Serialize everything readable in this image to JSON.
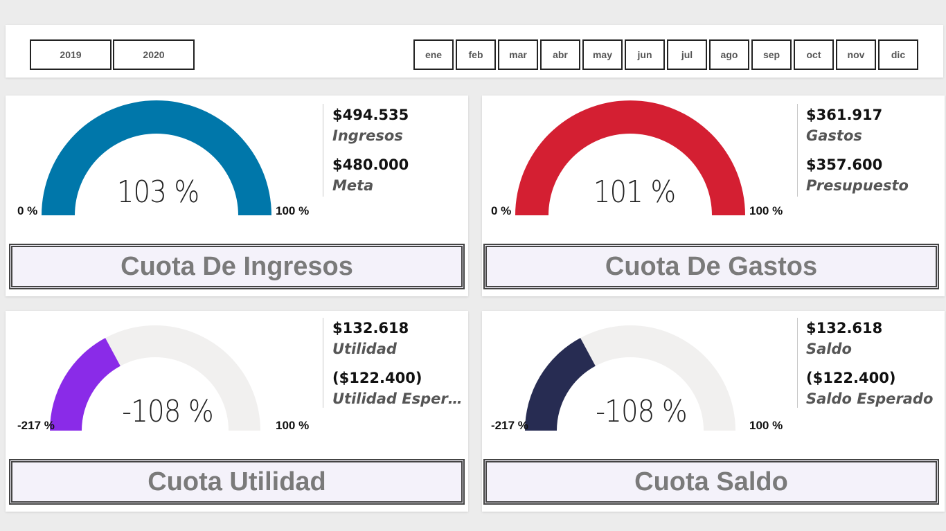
{
  "filters": {
    "years": [
      "2019",
      "2020"
    ],
    "months": [
      "ene",
      "feb",
      "mar",
      "abr",
      "may",
      "jun",
      "jul",
      "ago",
      "sep",
      "oct",
      "nov",
      "dic"
    ]
  },
  "cards": [
    {
      "title": "Cuota De Ingresos",
      "percent_label": "103 %",
      "min_label": "0 %",
      "max_label": "100 %",
      "fill_fraction": 1.0,
      "color": "#0077aa",
      "value1": "$494.535",
      "label1": "Ingresos",
      "value2": "$480.000",
      "label2": "Meta"
    },
    {
      "title": "Cuota De Gastos",
      "percent_label": "101 %",
      "min_label": "0 %",
      "max_label": "100 %",
      "fill_fraction": 1.0,
      "color": "#d41f32",
      "value1": "$361.917",
      "label1": "Gastos",
      "value2": "$357.600",
      "label2": "Presupuesto"
    },
    {
      "title": "Cuota Utilidad",
      "percent_label": "-108 %",
      "min_label": "-217 %",
      "max_label": "100 %",
      "fill_fraction": 0.343,
      "color": "#8a2be8",
      "value1": "$132.618",
      "label1": "Utilidad",
      "value2": "($122.400)",
      "label2": "Utilidad Espera..."
    },
    {
      "title": "Cuota Saldo",
      "percent_label": "-108 %",
      "min_label": "-217 %",
      "max_label": "100 %",
      "fill_fraction": 0.343,
      "color": "#272c52",
      "value1": "$132.618",
      "label1": "Saldo",
      "value2": "($122.400)",
      "label2": "Saldo Esperado"
    }
  ],
  "colors": {
    "track": "#f1f0ef",
    "background": "#ececec"
  }
}
